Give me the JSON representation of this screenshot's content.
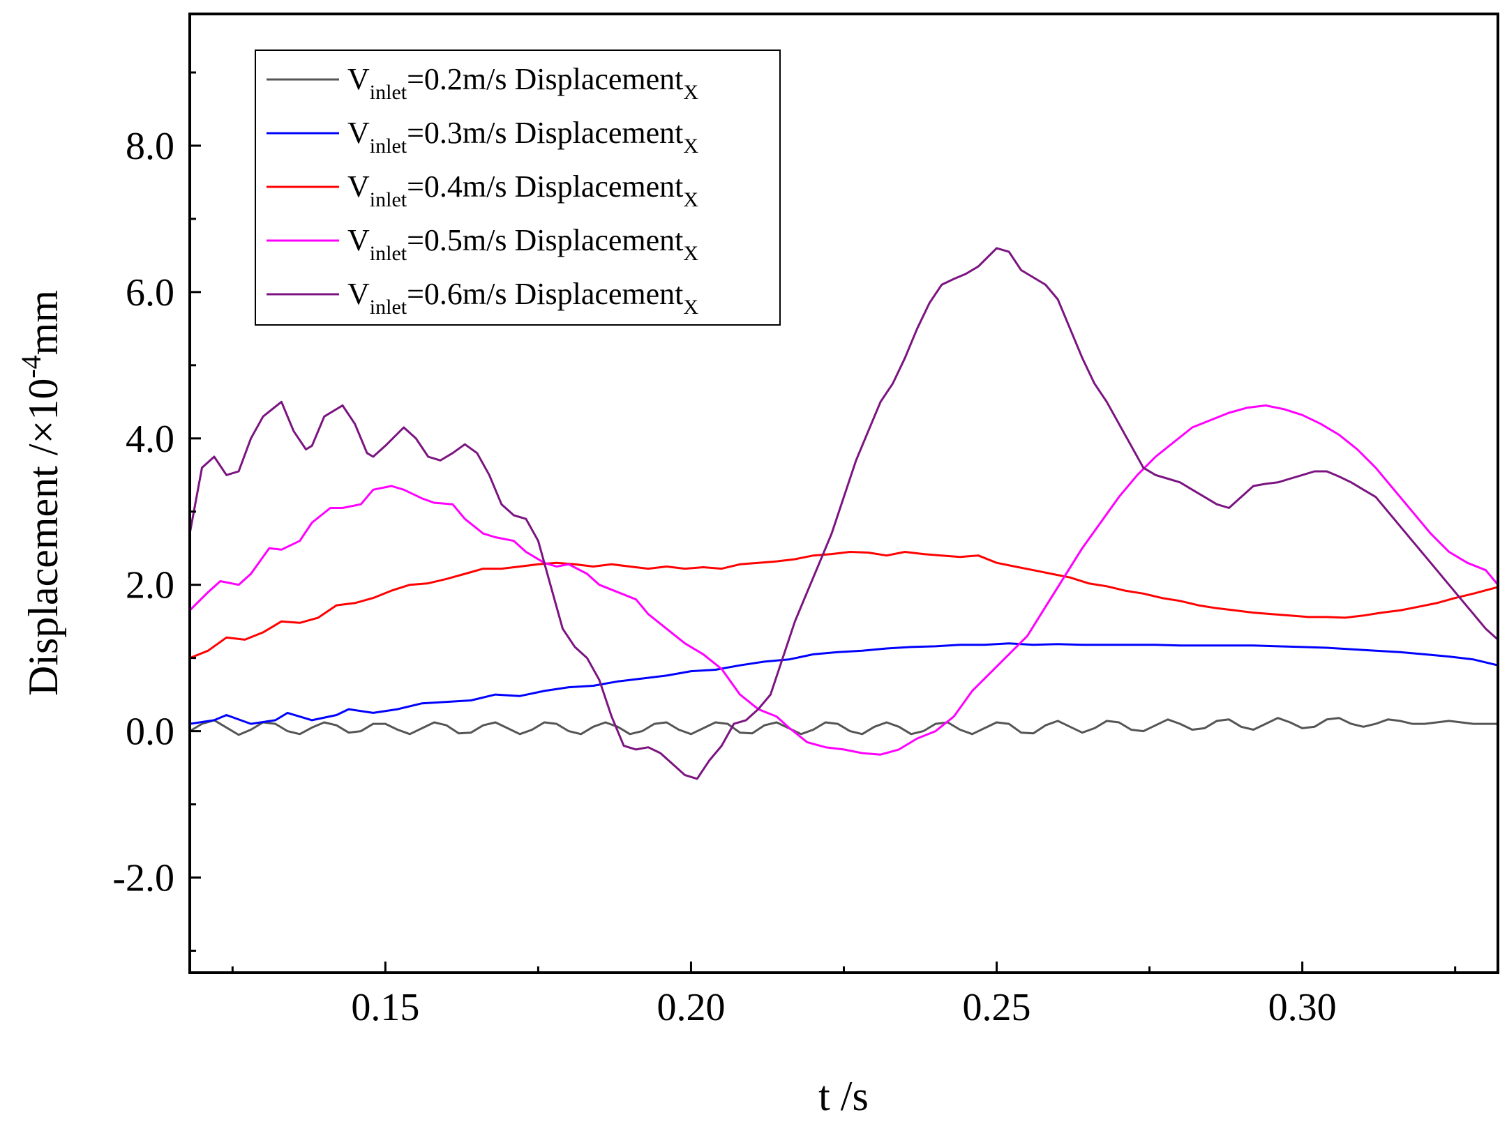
{
  "chart_data": {
    "type": "line",
    "title": "",
    "xlabel": "t /s",
    "ylabel_main": "Displacement /×10",
    "ylabel_exp": "-4",
    "ylabel_unit": "mm",
    "xlim": [
      0.118,
      0.332
    ],
    "ylim": [
      -3.3,
      9.8
    ],
    "xticks": [
      {
        "value": 0.15,
        "label": "0.15"
      },
      {
        "value": 0.2,
        "label": "0.20"
      },
      {
        "value": 0.25,
        "label": "0.25"
      },
      {
        "value": 0.3,
        "label": "0.30"
      }
    ],
    "yticks": [
      {
        "value": -2.0,
        "label": "-2.0"
      },
      {
        "value": 0.0,
        "label": "0.0"
      },
      {
        "value": 2.0,
        "label": "2.0"
      },
      {
        "value": 4.0,
        "label": "4.0"
      },
      {
        "value": 6.0,
        "label": "6.0"
      },
      {
        "value": 8.0,
        "label": "8.0"
      }
    ],
    "x_minor_step": 0.025,
    "y_minor_step": 1.0,
    "legend_position": "top-left",
    "series": [
      {
        "name": "Vinlet=0.2m/s DisplacementX",
        "legend_v": "V",
        "legend_sub": "inlet",
        "legend_mid": "=0.2m/s Displacement",
        "legend_tail": "X",
        "color": "#555555",
        "x": [
          0.118,
          0.12,
          0.122,
          0.124,
          0.126,
          0.128,
          0.13,
          0.132,
          0.134,
          0.136,
          0.138,
          0.14,
          0.142,
          0.144,
          0.146,
          0.148,
          0.15,
          0.152,
          0.154,
          0.156,
          0.158,
          0.16,
          0.162,
          0.164,
          0.166,
          0.168,
          0.17,
          0.172,
          0.174,
          0.176,
          0.178,
          0.18,
          0.182,
          0.184,
          0.186,
          0.188,
          0.19,
          0.192,
          0.194,
          0.196,
          0.198,
          0.2,
          0.202,
          0.204,
          0.206,
          0.208,
          0.21,
          0.212,
          0.214,
          0.216,
          0.218,
          0.22,
          0.222,
          0.224,
          0.226,
          0.228,
          0.23,
          0.232,
          0.234,
          0.236,
          0.238,
          0.24,
          0.242,
          0.244,
          0.246,
          0.248,
          0.25,
          0.252,
          0.254,
          0.256,
          0.258,
          0.26,
          0.262,
          0.264,
          0.266,
          0.268,
          0.27,
          0.272,
          0.274,
          0.276,
          0.278,
          0.28,
          0.282,
          0.284,
          0.286,
          0.288,
          0.29,
          0.292,
          0.294,
          0.296,
          0.298,
          0.3,
          0.302,
          0.304,
          0.306,
          0.308,
          0.31,
          0.312,
          0.314,
          0.316,
          0.318,
          0.32,
          0.322,
          0.324,
          0.326,
          0.328,
          0.33,
          0.332
        ],
        "y": [
          0.0,
          0.1,
          0.15,
          0.05,
          -0.05,
          0.02,
          0.12,
          0.1,
          0.0,
          -0.04,
          0.05,
          0.12,
          0.08,
          -0.02,
          0.0,
          0.1,
          0.1,
          0.02,
          -0.04,
          0.04,
          0.12,
          0.08,
          -0.03,
          -0.02,
          0.08,
          0.12,
          0.04,
          -0.04,
          0.02,
          0.12,
          0.1,
          0.0,
          -0.04,
          0.06,
          0.12,
          0.06,
          -0.04,
          0.0,
          0.1,
          0.12,
          0.02,
          -0.04,
          0.04,
          0.12,
          0.1,
          -0.02,
          -0.03,
          0.08,
          0.12,
          0.04,
          -0.04,
          0.02,
          0.12,
          0.1,
          0.0,
          -0.04,
          0.06,
          0.12,
          0.06,
          -0.04,
          0.0,
          0.1,
          0.12,
          0.02,
          -0.04,
          0.04,
          0.12,
          0.1,
          -0.02,
          -0.03,
          0.08,
          0.14,
          0.06,
          -0.02,
          0.04,
          0.14,
          0.12,
          0.02,
          0.0,
          0.08,
          0.16,
          0.1,
          0.02,
          0.04,
          0.14,
          0.16,
          0.06,
          0.02,
          0.1,
          0.18,
          0.12,
          0.04,
          0.06,
          0.16,
          0.18,
          0.1,
          0.06,
          0.1,
          0.16,
          0.14,
          0.1,
          0.1,
          0.12,
          0.14,
          0.12,
          0.1,
          0.1,
          0.1
        ]
      },
      {
        "name": "Vinlet=0.3m/s DisplacementX",
        "legend_v": "V",
        "legend_sub": "inlet",
        "legend_mid": "=0.3m/s Displacement",
        "legend_tail": "X",
        "color": "#0000ff",
        "x": [
          0.118,
          0.122,
          0.124,
          0.128,
          0.132,
          0.134,
          0.138,
          0.142,
          0.144,
          0.148,
          0.152,
          0.156,
          0.16,
          0.164,
          0.168,
          0.172,
          0.176,
          0.18,
          0.184,
          0.188,
          0.192,
          0.196,
          0.2,
          0.204,
          0.208,
          0.212,
          0.216,
          0.22,
          0.224,
          0.228,
          0.232,
          0.236,
          0.24,
          0.244,
          0.248,
          0.252,
          0.256,
          0.26,
          0.264,
          0.268,
          0.272,
          0.276,
          0.28,
          0.284,
          0.288,
          0.292,
          0.296,
          0.3,
          0.304,
          0.308,
          0.312,
          0.316,
          0.32,
          0.324,
          0.328,
          0.332
        ],
        "y": [
          0.1,
          0.15,
          0.22,
          0.1,
          0.15,
          0.25,
          0.15,
          0.22,
          0.3,
          0.25,
          0.3,
          0.38,
          0.4,
          0.42,
          0.5,
          0.48,
          0.55,
          0.6,
          0.62,
          0.68,
          0.72,
          0.76,
          0.82,
          0.84,
          0.9,
          0.95,
          0.98,
          1.05,
          1.08,
          1.1,
          1.13,
          1.15,
          1.16,
          1.18,
          1.18,
          1.2,
          1.18,
          1.19,
          1.18,
          1.18,
          1.18,
          1.18,
          1.17,
          1.17,
          1.17,
          1.17,
          1.16,
          1.15,
          1.14,
          1.12,
          1.1,
          1.08,
          1.05,
          1.02,
          0.98,
          0.9
        ]
      },
      {
        "name": "Vinlet=0.4m/s DisplacementX",
        "legend_v": "V",
        "legend_sub": "inlet",
        "legend_mid": "=0.4m/s Displacement",
        "legend_tail": "X",
        "color": "#ff0000",
        "x": [
          0.118,
          0.121,
          0.124,
          0.127,
          0.13,
          0.133,
          0.136,
          0.139,
          0.142,
          0.145,
          0.148,
          0.151,
          0.154,
          0.157,
          0.16,
          0.163,
          0.166,
          0.169,
          0.172,
          0.175,
          0.178,
          0.181,
          0.184,
          0.187,
          0.19,
          0.193,
          0.196,
          0.199,
          0.202,
          0.205,
          0.208,
          0.211,
          0.214,
          0.217,
          0.22,
          0.223,
          0.226,
          0.229,
          0.232,
          0.235,
          0.238,
          0.241,
          0.244,
          0.247,
          0.25,
          0.253,
          0.256,
          0.259,
          0.262,
          0.265,
          0.268,
          0.271,
          0.274,
          0.277,
          0.28,
          0.283,
          0.286,
          0.289,
          0.292,
          0.295,
          0.298,
          0.301,
          0.304,
          0.307,
          0.31,
          0.313,
          0.316,
          0.319,
          0.322,
          0.325,
          0.328,
          0.332
        ],
        "y": [
          1.0,
          1.1,
          1.28,
          1.25,
          1.35,
          1.5,
          1.48,
          1.55,
          1.72,
          1.75,
          1.82,
          1.92,
          2.0,
          2.02,
          2.08,
          2.15,
          2.22,
          2.22,
          2.25,
          2.28,
          2.3,
          2.28,
          2.25,
          2.28,
          2.25,
          2.22,
          2.25,
          2.22,
          2.24,
          2.22,
          2.28,
          2.3,
          2.32,
          2.35,
          2.4,
          2.42,
          2.45,
          2.44,
          2.4,
          2.45,
          2.42,
          2.4,
          2.38,
          2.4,
          2.3,
          2.25,
          2.2,
          2.15,
          2.1,
          2.02,
          1.98,
          1.92,
          1.88,
          1.82,
          1.78,
          1.72,
          1.68,
          1.65,
          1.62,
          1.6,
          1.58,
          1.56,
          1.56,
          1.55,
          1.58,
          1.62,
          1.65,
          1.7,
          1.75,
          1.82,
          1.88,
          1.97
        ]
      },
      {
        "name": "Vinlet=0.5m/s DisplacementX",
        "legend_v": "V",
        "legend_sub": "inlet",
        "legend_mid": "=0.5m/s Displacement",
        "legend_tail": "X",
        "color": "#ff00ff",
        "x": [
          0.118,
          0.121,
          0.123,
          0.126,
          0.128,
          0.131,
          0.133,
          0.136,
          0.138,
          0.141,
          0.143,
          0.146,
          0.148,
          0.151,
          0.153,
          0.156,
          0.158,
          0.161,
          0.163,
          0.166,
          0.168,
          0.171,
          0.173,
          0.176,
          0.178,
          0.18,
          0.183,
          0.185,
          0.188,
          0.191,
          0.193,
          0.196,
          0.199,
          0.202,
          0.205,
          0.208,
          0.211,
          0.214,
          0.216,
          0.219,
          0.222,
          0.225,
          0.228,
          0.231,
          0.234,
          0.237,
          0.24,
          0.243,
          0.246,
          0.249,
          0.252,
          0.255,
          0.258,
          0.261,
          0.264,
          0.267,
          0.27,
          0.273,
          0.276,
          0.279,
          0.282,
          0.285,
          0.288,
          0.291,
          0.294,
          0.297,
          0.3,
          0.303,
          0.306,
          0.309,
          0.312,
          0.315,
          0.318,
          0.321,
          0.324,
          0.327,
          0.33,
          0.332
        ],
        "y": [
          1.65,
          1.9,
          2.05,
          2.0,
          2.15,
          2.5,
          2.48,
          2.6,
          2.85,
          3.05,
          3.05,
          3.1,
          3.3,
          3.35,
          3.3,
          3.18,
          3.12,
          3.1,
          2.9,
          2.7,
          2.65,
          2.6,
          2.45,
          2.3,
          2.25,
          2.28,
          2.15,
          2.0,
          1.9,
          1.8,
          1.6,
          1.4,
          1.2,
          1.05,
          0.85,
          0.5,
          0.3,
          0.2,
          0.05,
          -0.15,
          -0.22,
          -0.25,
          -0.3,
          -0.32,
          -0.25,
          -0.1,
          0.0,
          0.2,
          0.55,
          0.8,
          1.05,
          1.3,
          1.7,
          2.1,
          2.5,
          2.85,
          3.2,
          3.5,
          3.75,
          3.95,
          4.15,
          4.25,
          4.35,
          4.42,
          4.45,
          4.4,
          4.32,
          4.2,
          4.05,
          3.85,
          3.6,
          3.3,
          3.0,
          2.7,
          2.45,
          2.3,
          2.2,
          2.0
        ]
      },
      {
        "name": "Vinlet=0.6m/s DisplacementX",
        "legend_v": "V",
        "legend_sub": "inlet",
        "legend_mid": "=0.6m/s Displacement",
        "legend_tail": "X",
        "color": "#7b1480",
        "x": [
          0.118,
          0.12,
          0.122,
          0.124,
          0.126,
          0.128,
          0.13,
          0.133,
          0.135,
          0.137,
          0.138,
          0.14,
          0.143,
          0.145,
          0.147,
          0.148,
          0.15,
          0.153,
          0.155,
          0.157,
          0.159,
          0.161,
          0.163,
          0.165,
          0.167,
          0.169,
          0.171,
          0.173,
          0.175,
          0.177,
          0.179,
          0.181,
          0.183,
          0.185,
          0.187,
          0.189,
          0.191,
          0.193,
          0.195,
          0.197,
          0.199,
          0.201,
          0.203,
          0.205,
          0.207,
          0.209,
          0.211,
          0.213,
          0.215,
          0.217,
          0.219,
          0.221,
          0.223,
          0.225,
          0.227,
          0.229,
          0.231,
          0.233,
          0.235,
          0.237,
          0.239,
          0.241,
          0.243,
          0.245,
          0.247,
          0.25,
          0.252,
          0.254,
          0.256,
          0.258,
          0.26,
          0.262,
          0.264,
          0.266,
          0.268,
          0.27,
          0.272,
          0.274,
          0.276,
          0.278,
          0.28,
          0.282,
          0.284,
          0.286,
          0.288,
          0.29,
          0.292,
          0.294,
          0.296,
          0.298,
          0.3,
          0.302,
          0.304,
          0.306,
          0.308,
          0.31,
          0.312,
          0.314,
          0.316,
          0.318,
          0.32,
          0.322,
          0.324,
          0.326,
          0.328,
          0.33,
          0.332
        ],
        "y": [
          2.7,
          3.6,
          3.75,
          3.5,
          3.55,
          4.0,
          4.3,
          4.5,
          4.1,
          3.85,
          3.9,
          4.3,
          4.45,
          4.2,
          3.8,
          3.75,
          3.9,
          4.15,
          4.0,
          3.75,
          3.7,
          3.8,
          3.92,
          3.8,
          3.5,
          3.1,
          2.95,
          2.9,
          2.6,
          2.0,
          1.4,
          1.15,
          1.0,
          0.7,
          0.2,
          -0.2,
          -0.25,
          -0.22,
          -0.3,
          -0.45,
          -0.6,
          -0.65,
          -0.4,
          -0.2,
          0.1,
          0.15,
          0.3,
          0.5,
          1.0,
          1.5,
          1.9,
          2.3,
          2.7,
          3.2,
          3.7,
          4.1,
          4.5,
          4.75,
          5.1,
          5.5,
          5.85,
          6.1,
          6.18,
          6.25,
          6.35,
          6.6,
          6.55,
          6.3,
          6.2,
          6.1,
          5.9,
          5.5,
          5.1,
          4.75,
          4.5,
          4.2,
          3.9,
          3.6,
          3.5,
          3.45,
          3.4,
          3.3,
          3.2,
          3.1,
          3.05,
          3.2,
          3.35,
          3.38,
          3.4,
          3.45,
          3.5,
          3.55,
          3.55,
          3.48,
          3.4,
          3.3,
          3.2,
          3.0,
          2.8,
          2.6,
          2.4,
          2.2,
          2.0,
          1.8,
          1.6,
          1.4,
          1.25
        ]
      }
    ]
  }
}
